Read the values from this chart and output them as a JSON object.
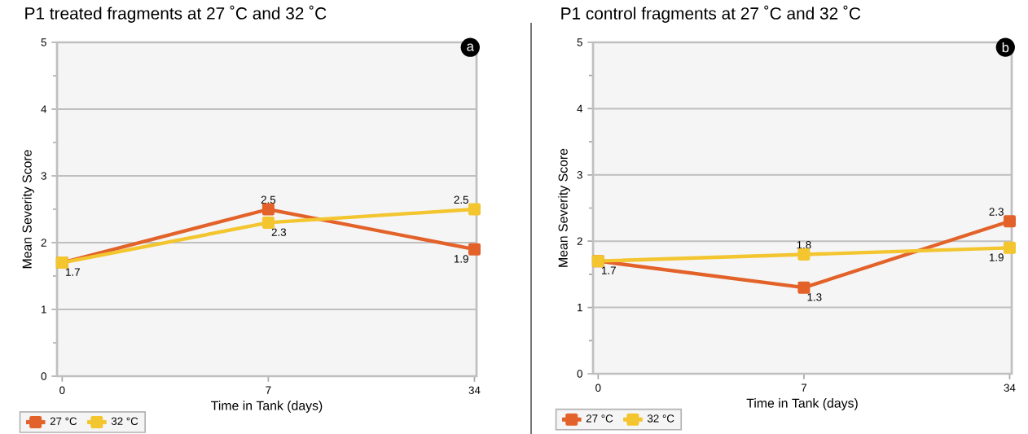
{
  "chart_data": [
    {
      "type": "line",
      "title": "P1 treated fragments at 27 ˚C and 32 ˚C",
      "xlabel": "Time in Tank (days)",
      "ylabel": "Mean Severity Score",
      "categories": [
        "0",
        "7",
        "34"
      ],
      "series": [
        {
          "name": "27 °C",
          "color": "#e3622a",
          "values": [
            1.7,
            2.5,
            1.9
          ],
          "value_labels": [
            "1.7",
            "2.5",
            "1.9"
          ]
        },
        {
          "name": "32 °C",
          "color": "#f3c52f",
          "values": [
            1.7,
            2.3,
            2.5
          ],
          "value_labels": [
            null,
            "2.3",
            "2.5"
          ]
        }
      ],
      "ylim": [
        0,
        5
      ],
      "yticks": [
        0,
        1,
        2,
        3,
        4,
        5
      ],
      "grid": "y",
      "legend": "bottom left",
      "marker": "square",
      "annotations": [
        "a"
      ]
    },
    {
      "type": "line",
      "title": "P1 control fragments at 27 ˚C and 32 ˚C",
      "xlabel": "Time in Tank (days)",
      "ylabel": "Mean Severity Score",
      "categories": [
        "0",
        "7",
        "34"
      ],
      "series": [
        {
          "name": "27 °C",
          "color": "#e3622a",
          "values": [
            1.7,
            1.3,
            2.3
          ],
          "value_labels": [
            "1.7",
            "1.3",
            "2.3"
          ]
        },
        {
          "name": "32 °C",
          "color": "#f3c52f",
          "values": [
            1.7,
            1.8,
            1.9
          ],
          "value_labels": [
            null,
            "1.8",
            "1.9"
          ]
        }
      ],
      "ylim": [
        0,
        5
      ],
      "yticks": [
        0,
        1,
        2,
        3,
        4,
        5
      ],
      "grid": "y",
      "legend": "bottom left",
      "marker": "square",
      "annotations": [
        "b"
      ]
    }
  ]
}
